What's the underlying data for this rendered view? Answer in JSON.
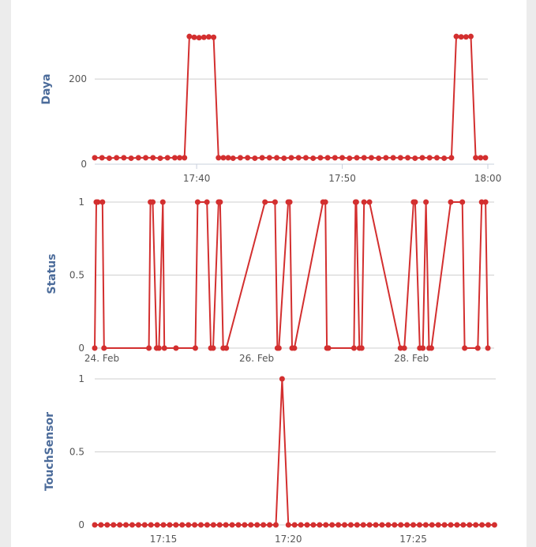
{
  "colors": {
    "series": "#d32f2f",
    "axis_label": "#4b6b9a",
    "grid": "#cfcfcf",
    "side_strip": "#ececec"
  },
  "chart_data": [
    {
      "type": "line",
      "ylabel": "Daya",
      "ylim": [
        0,
        330
      ],
      "yticks": [
        0,
        200
      ],
      "x_tick_labels": [
        "17:40",
        "17:50",
        "18:00"
      ],
      "x_tick_times": [
        "17:40",
        "17:50",
        "18:00"
      ],
      "xlim": [
        "17:33",
        "18:00"
      ],
      "grid": true,
      "legend": "none",
      "series": [
        {
          "x": [
            "17:33",
            "17:33:30",
            "17:34",
            "17:34:30",
            "17:35",
            "17:35:30",
            "17:36",
            "17:36:30",
            "17:37",
            "17:37:30",
            "17:38",
            "17:38:30",
            "17:38:50",
            "17:39:10",
            "17:39:30",
            "17:39:50",
            "17:40:10",
            "17:40:30",
            "17:40:50",
            "17:41:10",
            "17:41:30",
            "17:41:50",
            "17:42:10",
            "17:42:30",
            "17:43",
            "17:43:30",
            "17:44",
            "17:44:30",
            "17:45",
            "17:45:30",
            "17:46",
            "17:46:30",
            "17:47",
            "17:47:30",
            "17:48",
            "17:48:30",
            "17:49",
            "17:49:30",
            "17:50",
            "17:50:30",
            "17:51",
            "17:51:30",
            "17:52",
            "17:52:30",
            "17:53",
            "17:53:30",
            "17:54",
            "17:54:30",
            "17:55",
            "17:55:30",
            "17:56",
            "17:56:30",
            "17:57",
            "17:57:30",
            "17:57:50",
            "17:58:10",
            "17:58:30",
            "17:58:50",
            "17:59:10",
            "17:59:30",
            "17:59:50"
          ],
          "y": [
            15,
            15,
            14,
            15,
            15,
            14,
            15,
            15,
            15,
            14,
            15,
            15,
            15,
            15,
            300,
            298,
            297,
            298,
            299,
            298,
            15,
            15,
            15,
            14,
            15,
            15,
            14,
            15,
            15,
            15,
            14,
            15,
            15,
            15,
            14,
            15,
            15,
            15,
            15,
            14,
            15,
            15,
            15,
            14,
            15,
            15,
            15,
            15,
            14,
            15,
            15,
            15,
            14,
            15,
            300,
            299,
            299,
            300,
            15,
            15,
            15
          ]
        }
      ]
    },
    {
      "type": "line",
      "ylabel": "Status",
      "ylim": [
        0,
        1
      ],
      "yticks": [
        0,
        0.5,
        1
      ],
      "x_tick_labels": [
        "24. Feb",
        "26. Feb",
        "28. Feb"
      ],
      "x_tick_days": [
        24,
        26,
        28
      ],
      "xlim": [
        24,
        29.1
      ],
      "grid": true,
      "legend": "none",
      "series": [
        {
          "x": [
            24.0,
            24.02,
            24.04,
            24.1,
            24.12,
            24.7,
            24.72,
            24.75,
            24.8,
            24.83,
            24.88,
            24.9,
            25.05,
            25.3,
            25.33,
            25.45,
            25.5,
            25.53,
            25.6,
            25.62,
            25.66,
            25.7,
            26.2,
            26.33,
            26.36,
            26.38,
            26.5,
            26.52,
            26.55,
            26.58,
            26.95,
            26.98,
            27.0,
            27.02,
            27.35,
            27.37,
            27.38,
            27.42,
            27.45,
            27.48,
            27.55,
            27.95,
            28.0,
            28.12,
            28.14,
            28.2,
            28.24,
            28.28,
            28.32,
            28.35,
            28.6,
            28.75,
            28.78,
            28.95,
            29.0,
            29.05,
            29.08
          ],
          "y": [
            0,
            1,
            1,
            1,
            0,
            0,
            1,
            1,
            0,
            0,
            1,
            0,
            0,
            0,
            1,
            1,
            0,
            0,
            1,
            1,
            0,
            0,
            1,
            1,
            0,
            0,
            1,
            1,
            0,
            0,
            1,
            1,
            0,
            0,
            0,
            1,
            1,
            0,
            0,
            1,
            1,
            0,
            0,
            1,
            1,
            0,
            0,
            1,
            0,
            0,
            1,
            1,
            0,
            0,
            1,
            1,
            0
          ]
        }
      ]
    },
    {
      "type": "line",
      "ylabel": "TouchSensor",
      "ylim": [
        0,
        1
      ],
      "yticks": [
        0,
        0.5,
        1
      ],
      "x_tick_labels": [
        "17:15",
        "17:20",
        "17:25"
      ],
      "x_tick_minutes": [
        15,
        20,
        25
      ],
      "xlim": [
        12.25,
        28.3
      ],
      "grid": true,
      "legend": "none",
      "series": [
        {
          "step": 0.25,
          "x_start": 12.25,
          "x_end": 28.25,
          "peak_x": 19.75,
          "peak_y": 1,
          "base_y": 0
        }
      ]
    }
  ]
}
